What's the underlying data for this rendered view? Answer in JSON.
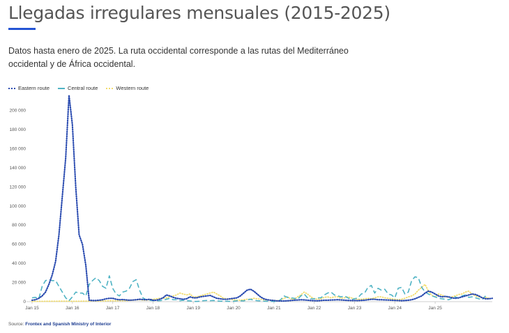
{
  "title": "Llegadas irregulares mensuales (2015-2025)",
  "subtitle": "Datos hasta enero de 2025. La ruta occidental corresponde a las rutas del Mediterráneo occidental y de África occidental.",
  "source_label": "Source:",
  "source_text": "Frontex and Spanish Ministry of Interior",
  "colors": {
    "eastern": "#2a4bb0",
    "central": "#4fb3c4",
    "western": "#f2dc6b",
    "accent": "#2454d4"
  },
  "chart_data": {
    "type": "line",
    "title": "Llegadas irregulares mensuales (2015-2025)",
    "xlabel": "",
    "ylabel": "",
    "ylim": [
      0,
      215000
    ],
    "grid": false,
    "legend": "top-left",
    "y_ticks": [
      "0",
      "20 000",
      "40 000",
      "60 000",
      "80 000",
      "100 000",
      "120 000",
      "140 000",
      "160 000",
      "180 000",
      "200 000"
    ],
    "x_ticks": [
      "Jan 15",
      "Jan 16",
      "Jan 17",
      "Jan 18",
      "Jan 19",
      "Jan 20",
      "Jan 21",
      "Jan 22",
      "Jan 23",
      "Jan 24",
      "Jan 25"
    ],
    "series": [
      {
        "name": "Eastern route",
        "key": "eastern",
        "values": [
          1500,
          2000,
          3500,
          6000,
          10000,
          18000,
          28000,
          42000,
          70000,
          110000,
          150000,
          216000,
          185000,
          120000,
          70000,
          60000,
          38000,
          1500,
          1200,
          1200,
          1500,
          2000,
          3000,
          3500,
          3500,
          2500,
          2000,
          2200,
          1800,
          1500,
          1700,
          2000,
          2500,
          2200,
          2000,
          2500,
          1500,
          1500,
          2500,
          4000,
          7000,
          6000,
          4500,
          3500,
          3000,
          2500,
          3000,
          5000,
          4000,
          4000,
          5000,
          5500,
          6000,
          6500,
          5000,
          3500,
          3000,
          2500,
          2500,
          3000,
          3500,
          4000,
          6000,
          9000,
          12000,
          13000,
          11000,
          8000,
          5000,
          3000,
          2000,
          1500,
          1200,
          800,
          700,
          700,
          900,
          1200,
          1500,
          1700,
          2000,
          1800,
          1500,
          1200,
          1000,
          900,
          1200,
          1500,
          1500,
          1700,
          1800,
          2000,
          1800,
          1500,
          1300,
          1200,
          1200,
          1100,
          1300,
          1500,
          2000,
          2500,
          2500,
          2000,
          2000,
          1800,
          1700,
          1500,
          1300,
          1200,
          1000,
          1200,
          1500,
          2000,
          3000,
          4500,
          6000,
          9000,
          11000,
          10000,
          8000,
          6000,
          5000,
          5500,
          5000,
          4000,
          3500,
          4000,
          5000,
          6000,
          7000,
          8000,
          7500,
          6000,
          4000,
          3000,
          3000,
          3500
        ]
      },
      {
        "name": "Central route",
        "key": "central",
        "values": [
          4000,
          4500,
          3000,
          16000,
          22000,
          23000,
          22000,
          22000,
          16000,
          10000,
          4000,
          1000,
          5000,
          10000,
          9000,
          9000,
          6000,
          18000,
          22000,
          25000,
          22000,
          16000,
          14000,
          27000,
          14000,
          8000,
          6000,
          10000,
          11000,
          14000,
          21000,
          23000,
          12000,
          4000,
          2000,
          1500,
          1000,
          900,
          1000,
          1500,
          2500,
          3500,
          2000,
          2000,
          1000,
          1500,
          1000,
          800,
          200,
          200,
          500,
          1000,
          1200,
          1000,
          1200,
          800,
          500,
          500,
          400,
          300,
          400,
          900,
          1000,
          800,
          1800,
          2500,
          1500,
          1000,
          800,
          600,
          400,
          300,
          200,
          200,
          2000,
          6000,
          4500,
          4000,
          3500,
          2500,
          6000,
          8000,
          4000,
          3000,
          3000,
          4000,
          4000,
          7000,
          9000,
          10000,
          7000,
          6000,
          5000,
          6000,
          4000,
          2000,
          3000,
          4000,
          8000,
          9000,
          15000,
          17000,
          9000,
          14000,
          12000,
          13000,
          8000,
          7000,
          4000,
          14000,
          15000,
          8000,
          10000,
          22000,
          26000,
          25000,
          15000,
          10000,
          8000,
          6000,
          5000,
          3500,
          3000,
          2500,
          2000,
          3500,
          5000,
          3500,
          6000,
          7000,
          4500,
          5000,
          4000,
          3000,
          2000,
          6000
        ]
      },
      {
        "name": "Western route",
        "key": "western",
        "values": [
          300,
          300,
          300,
          350,
          400,
          400,
          450,
          450,
          500,
          500,
          500,
          500,
          400,
          400,
          450,
          500,
          500,
          600,
          800,
          600,
          600,
          700,
          800,
          1000,
          900,
          800,
          1000,
          900,
          1000,
          1200,
          1500,
          1800,
          2000,
          1500,
          1500,
          2000,
          2500,
          3000,
          3500,
          3500,
          4000,
          5000,
          6000,
          7000,
          9000,
          8000,
          7000,
          8000,
          5000,
          5000,
          6000,
          7000,
          8000,
          9000,
          10000,
          8000,
          6000,
          3500,
          3000,
          2500,
          2000,
          1500,
          1500,
          2000,
          2500,
          2500,
          3500,
          3000,
          2500,
          2000,
          1800,
          1500,
          1200,
          1000,
          1500,
          3500,
          5000,
          3000,
          2500,
          5000,
          7000,
          10000,
          8000,
          5000,
          3000,
          2500,
          3000,
          4500,
          5000,
          4000,
          5000,
          5000,
          3500,
          4000,
          5000,
          4000,
          3000,
          2500,
          2500,
          3000,
          3500,
          3000,
          4000,
          5000,
          5000,
          4000,
          3500,
          3000,
          2500,
          2000,
          2500,
          3500,
          5000,
          6000,
          8000,
          12000,
          15000,
          18000,
          11000,
          6500,
          5000,
          8000,
          7000,
          5000,
          4500,
          5000,
          6000,
          7500,
          8000,
          10000,
          11000,
          8000,
          6000,
          5000,
          4000,
          4500,
          3500
        ]
      }
    ]
  }
}
